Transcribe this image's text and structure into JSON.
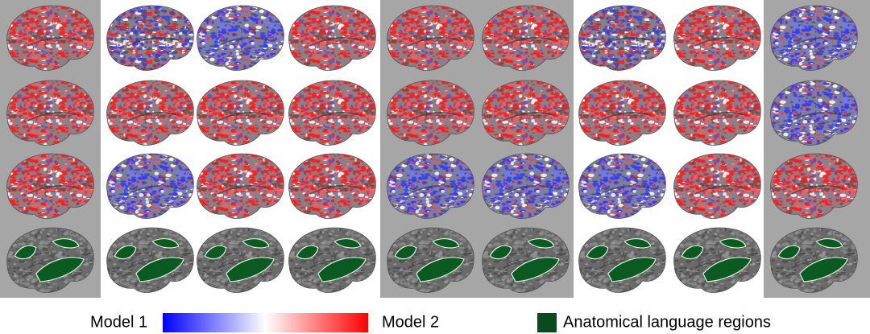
{
  "legend": {
    "left_label": "Model 1",
    "right_label": "Model 2",
    "region_label": "Anatomical language regions"
  }
}
